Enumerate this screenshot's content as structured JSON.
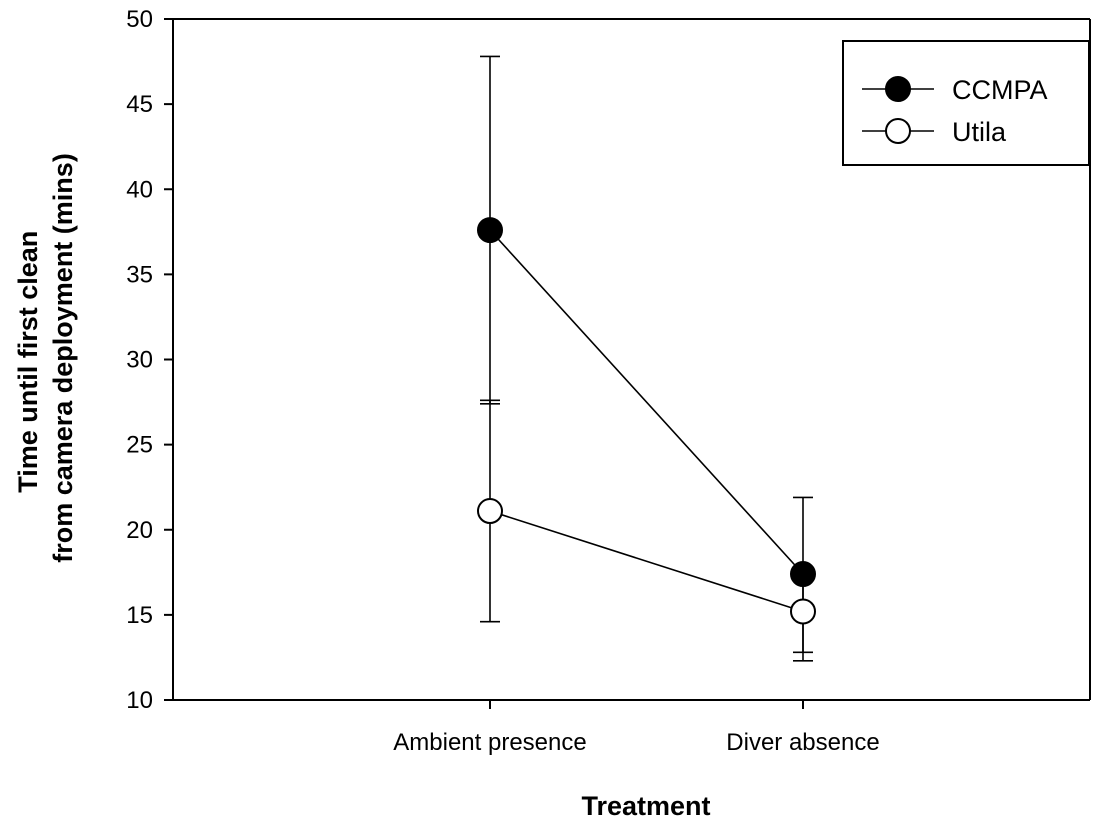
{
  "chart_data": {
    "type": "line",
    "title": "",
    "xlabel": "Treatment",
    "ylabel_lines": [
      "Time until first clean",
      "from camera deployment (mins)"
    ],
    "categories": [
      "Ambient presence",
      "Diver absence"
    ],
    "ylim": [
      10,
      50
    ],
    "yticks": [
      10,
      15,
      20,
      25,
      30,
      35,
      40,
      45,
      50
    ],
    "grid": false,
    "legend_position": "top-right",
    "series": [
      {
        "name": "CCMPA",
        "marker": "filled-circle",
        "color": "#000000",
        "values": [
          37.6,
          17.4
        ],
        "err_low": [
          27.4,
          12.8
        ],
        "err_high": [
          47.8,
          21.9
        ]
      },
      {
        "name": "Utila",
        "marker": "open-circle",
        "color": "#000000",
        "values": [
          21.1,
          15.2
        ],
        "err_low": [
          14.6,
          12.3
        ],
        "err_high": [
          27.6,
          17.5
        ]
      }
    ]
  }
}
